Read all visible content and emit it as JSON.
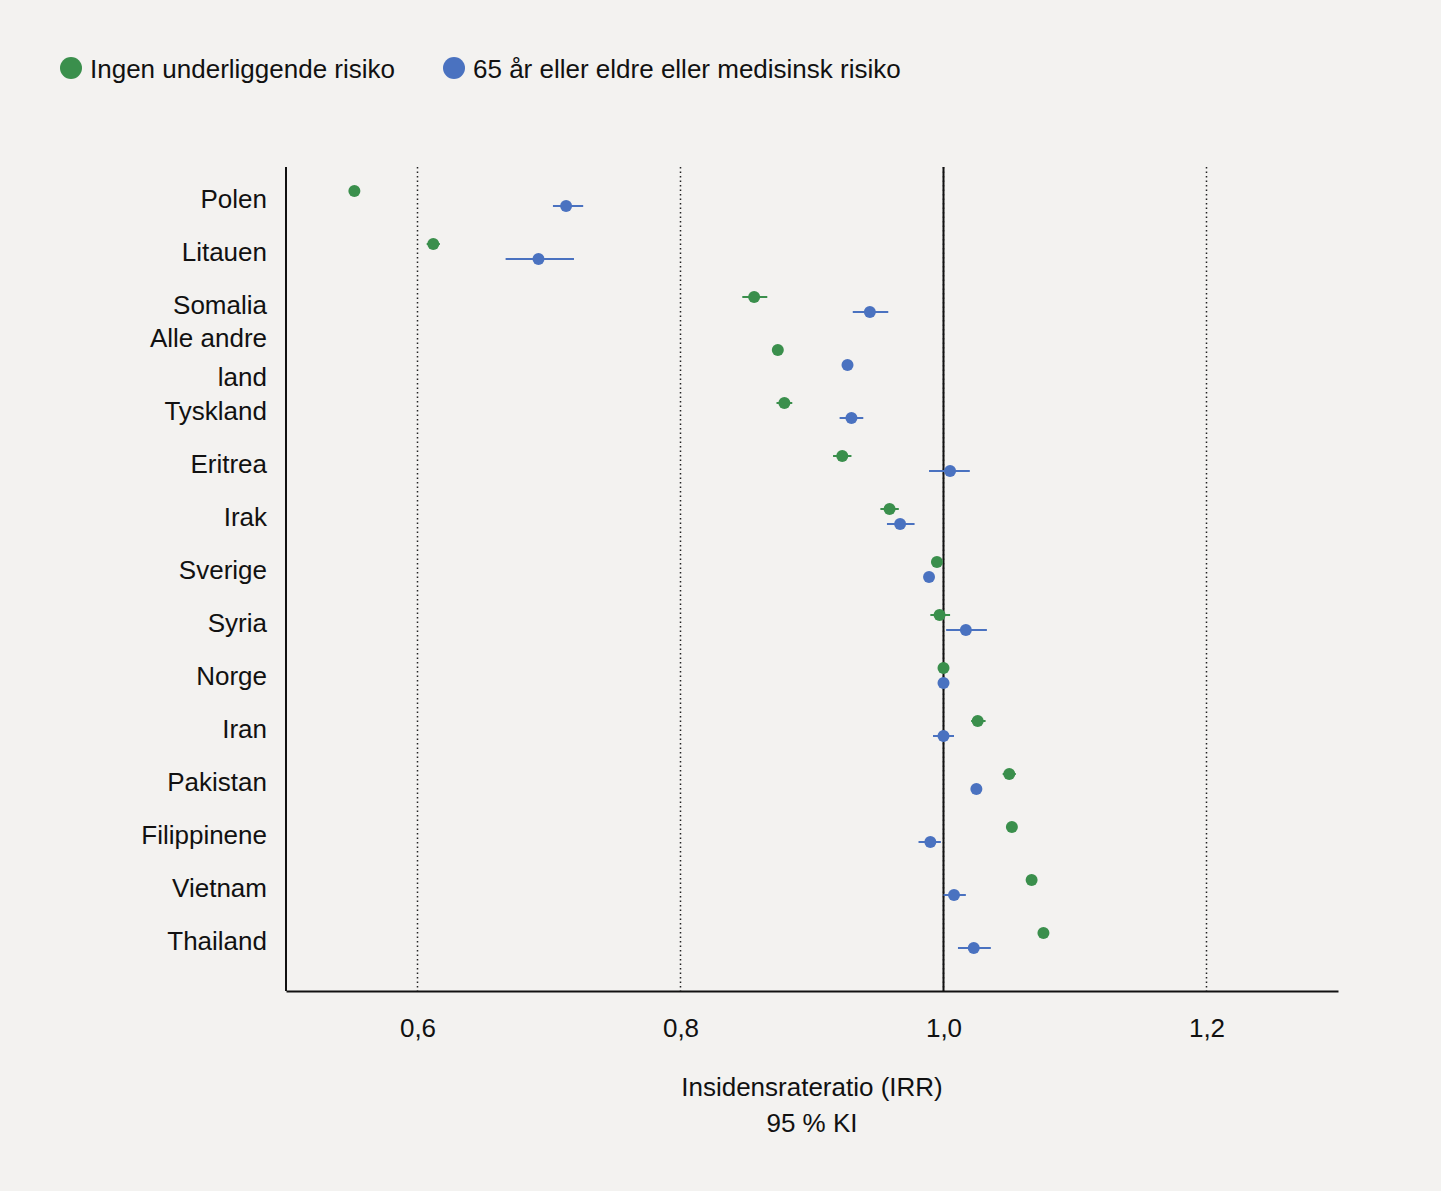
{
  "chart_data": {
    "type": "dot",
    "orientation": "horizontal",
    "categories": [
      "Polen",
      "Litauen",
      "Somalia",
      "Alle andre land",
      "Tyskland",
      "Eritrea",
      "Irak",
      "Sverige",
      "Syria",
      "Norge",
      "Iran",
      "Pakistan",
      "Filippinene",
      "Vietnam",
      "Thailand"
    ],
    "series": [
      {
        "name": "Ingen underliggende risiko",
        "color": "#3a8f4c",
        "values": [
          0.552,
          0.612,
          0.856,
          0.874,
          0.879,
          0.923,
          0.959,
          0.995,
          0.997,
          1.0,
          1.026,
          1.05,
          1.052,
          1.067,
          1.076
        ],
        "ci_low": [
          0.55,
          0.607,
          0.847,
          0.872,
          0.873,
          0.916,
          0.952,
          0.993,
          0.99,
          0.998,
          1.021,
          1.045,
          1.05,
          1.065,
          1.074
        ],
        "ci_high": [
          0.554,
          0.617,
          0.866,
          0.876,
          0.885,
          0.93,
          0.966,
          0.997,
          1.005,
          1.002,
          1.032,
          1.055,
          1.054,
          1.069,
          1.078
        ]
      },
      {
        "name": "65 år eller eldre eller medisinsk risiko",
        "color": "#4a72c0",
        "values": [
          0.713,
          0.692,
          0.944,
          0.927,
          0.93,
          1.005,
          0.967,
          0.989,
          1.017,
          1.0,
          1.0,
          1.025,
          0.99,
          1.008,
          1.023
        ],
        "ci_low": [
          0.703,
          0.667,
          0.931,
          0.925,
          0.921,
          0.989,
          0.957,
          0.987,
          1.002,
          0.998,
          0.992,
          1.023,
          0.981,
          1.0,
          1.011
        ],
        "ci_high": [
          0.726,
          0.719,
          0.958,
          0.929,
          0.939,
          1.02,
          0.978,
          0.991,
          1.033,
          1.002,
          1.008,
          1.027,
          0.998,
          1.017,
          1.036
        ]
      }
    ],
    "xlabel": [
      "Insidensrateratio (IRR)",
      "95 % KI"
    ],
    "xlim": [
      0.5,
      1.3
    ],
    "xticks": [
      {
        "value": 0.6,
        "label": "0,6"
      },
      {
        "value": 0.8,
        "label": "0,8"
      },
      {
        "value": 1.0,
        "label": "1,0"
      },
      {
        "value": 1.2,
        "label": "1,2"
      }
    ],
    "reference_line": 1,
    "grid": true,
    "legend": "top-left",
    "marker": "circle"
  }
}
